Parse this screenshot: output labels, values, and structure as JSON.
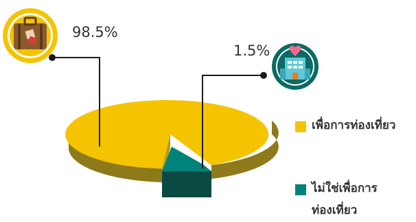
{
  "chart_data": {
    "type": "pie",
    "style": "3d-exploded",
    "categories": [
      "เพื่อการท่องเที่ยว",
      "ไม่ใช่เพื่อการท่องเที่ยว"
    ],
    "values": [
      98.5,
      1.5
    ],
    "data_labels": [
      "98.5%",
      "1.5%"
    ],
    "legend": {
      "placement": "right",
      "entries": [
        {
          "label": "เพื่อการท่องเที่ยว",
          "color": "#F5C400"
        },
        {
          "label_line1": "ไม่ใช่เพื่อการ",
          "label_line2": "ท่องเที่ยว",
          "color": "#00837A"
        }
      ]
    },
    "icons": [
      "suitcase-icon",
      "hotel-icon"
    ]
  },
  "colors": {
    "slice_travel": "#F5C400",
    "slice_travel_side": "#8E7A1A",
    "slice_other": "#00837A",
    "slice_other_side": "#0B4A43",
    "icon_ring": "#F5C400",
    "icon_ring_teal": "#0B6B63",
    "leader_line": "#1a1a1a"
  }
}
